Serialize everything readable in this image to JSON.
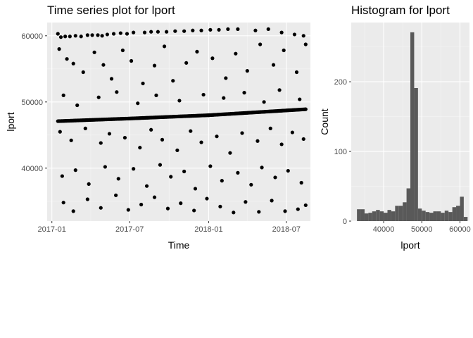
{
  "chart_data": [
    {
      "type": "scatter",
      "title": "Time series plot for lport",
      "xlabel": "Time",
      "ylabel": "lport",
      "xlim": [
        "2016-12-21",
        "2018-08-26"
      ],
      "ylim": [
        32000,
        62000
      ],
      "x_ticks": [
        "2017-01",
        "2017-07",
        "2018-01",
        "2018-07"
      ],
      "y_ticks": [
        40000,
        50000,
        60000
      ],
      "grid": true,
      "trend": {
        "x": [
          "2017-01-15",
          "2017-07-01",
          "2018-01-01",
          "2018-08-15"
        ],
        "y": [
          47100,
          47500,
          48000,
          48900
        ]
      },
      "points": [
        {
          "x": "2017-01-15",
          "y": 60300
        },
        {
          "x": "2017-01-22",
          "y": 59800
        },
        {
          "x": "2017-02-01",
          "y": 59900
        },
        {
          "x": "2017-02-12",
          "y": 59900
        },
        {
          "x": "2017-02-25",
          "y": 60000
        },
        {
          "x": "2017-03-10",
          "y": 59900
        },
        {
          "x": "2017-03-25",
          "y": 60100
        },
        {
          "x": "2017-04-05",
          "y": 60100
        },
        {
          "x": "2017-04-18",
          "y": 60100
        },
        {
          "x": "2017-04-28",
          "y": 60000
        },
        {
          "x": "2017-05-10",
          "y": 60200
        },
        {
          "x": "2017-05-25",
          "y": 60300
        },
        {
          "x": "2017-06-10",
          "y": 60400
        },
        {
          "x": "2017-06-25",
          "y": 60300
        },
        {
          "x": "2017-07-10",
          "y": 60500
        },
        {
          "x": "2017-08-05",
          "y": 60500
        },
        {
          "x": "2017-08-20",
          "y": 60600
        },
        {
          "x": "2017-09-05",
          "y": 60600
        },
        {
          "x": "2017-09-25",
          "y": 60600
        },
        {
          "x": "2017-10-15",
          "y": 60700
        },
        {
          "x": "2017-11-05",
          "y": 60700
        },
        {
          "x": "2017-11-25",
          "y": 60800
        },
        {
          "x": "2017-12-15",
          "y": 60800
        },
        {
          "x": "2018-01-05",
          "y": 60900
        },
        {
          "x": "2018-01-25",
          "y": 60900
        },
        {
          "x": "2018-02-15",
          "y": 61000
        },
        {
          "x": "2018-03-10",
          "y": 61000
        },
        {
          "x": "2018-04-20",
          "y": 60800
        },
        {
          "x": "2018-05-20",
          "y": 61000
        },
        {
          "x": "2018-06-20",
          "y": 60500
        },
        {
          "x": "2018-07-20",
          "y": 60200
        },
        {
          "x": "2018-08-10",
          "y": 60000
        },
        {
          "x": "2017-01-18",
          "y": 58000
        },
        {
          "x": "2017-02-05",
          "y": 56500
        },
        {
          "x": "2017-02-20",
          "y": 55800
        },
        {
          "x": "2017-03-15",
          "y": 54500
        },
        {
          "x": "2017-04-10",
          "y": 57500
        },
        {
          "x": "2017-05-01",
          "y": 55600
        },
        {
          "x": "2017-05-20",
          "y": 53500
        },
        {
          "x": "2017-06-15",
          "y": 57800
        },
        {
          "x": "2017-07-05",
          "y": 56200
        },
        {
          "x": "2017-08-01",
          "y": 52800
        },
        {
          "x": "2017-08-28",
          "y": 55500
        },
        {
          "x": "2017-09-20",
          "y": 58400
        },
        {
          "x": "2017-10-10",
          "y": 53200
        },
        {
          "x": "2017-11-10",
          "y": 55900
        },
        {
          "x": "2017-12-05",
          "y": 57600
        },
        {
          "x": "2018-01-10",
          "y": 56600
        },
        {
          "x": "2018-02-10",
          "y": 53600
        },
        {
          "x": "2018-03-05",
          "y": 57300
        },
        {
          "x": "2018-04-01",
          "y": 54700
        },
        {
          "x": "2018-05-01",
          "y": 58700
        },
        {
          "x": "2018-06-01",
          "y": 55600
        },
        {
          "x": "2018-06-25",
          "y": 57800
        },
        {
          "x": "2018-07-25",
          "y": 54500
        },
        {
          "x": "2018-08-15",
          "y": 58700
        },
        {
          "x": "2017-01-28",
          "y": 51000
        },
        {
          "x": "2017-03-01",
          "y": 49500
        },
        {
          "x": "2017-04-20",
          "y": 50700
        },
        {
          "x": "2017-06-01",
          "y": 51500
        },
        {
          "x": "2017-07-20",
          "y": 49800
        },
        {
          "x": "2017-09-01",
          "y": 51000
        },
        {
          "x": "2017-10-25",
          "y": 50200
        },
        {
          "x": "2017-12-20",
          "y": 51100
        },
        {
          "x": "2018-02-05",
          "y": 50600
        },
        {
          "x": "2018-03-25",
          "y": 51400
        },
        {
          "x": "2018-05-10",
          "y": 50000
        },
        {
          "x": "2018-06-15",
          "y": 51800
        },
        {
          "x": "2018-08-01",
          "y": 50400
        },
        {
          "x": "2017-01-20",
          "y": 45500
        },
        {
          "x": "2017-02-15",
          "y": 44200
        },
        {
          "x": "2017-03-20",
          "y": 46000
        },
        {
          "x": "2017-04-25",
          "y": 43800
        },
        {
          "x": "2017-05-15",
          "y": 45200
        },
        {
          "x": "2017-06-20",
          "y": 44600
        },
        {
          "x": "2017-07-25",
          "y": 43100
        },
        {
          "x": "2017-08-20",
          "y": 45800
        },
        {
          "x": "2017-09-15",
          "y": 44300
        },
        {
          "x": "2017-10-20",
          "y": 42700
        },
        {
          "x": "2017-11-20",
          "y": 45600
        },
        {
          "x": "2017-12-15",
          "y": 43900
        },
        {
          "x": "2018-01-20",
          "y": 44800
        },
        {
          "x": "2018-02-20",
          "y": 42300
        },
        {
          "x": "2018-03-20",
          "y": 45300
        },
        {
          "x": "2018-04-25",
          "y": 44100
        },
        {
          "x": "2018-05-25",
          "y": 46000
        },
        {
          "x": "2018-06-20",
          "y": 43600
        },
        {
          "x": "2018-07-15",
          "y": 45400
        },
        {
          "x": "2018-08-10",
          "y": 44400
        },
        {
          "x": "2017-01-25",
          "y": 38800
        },
        {
          "x": "2017-02-25",
          "y": 39700
        },
        {
          "x": "2017-03-28",
          "y": 37600
        },
        {
          "x": "2017-05-05",
          "y": 40200
        },
        {
          "x": "2017-06-05",
          "y": 38400
        },
        {
          "x": "2017-07-10",
          "y": 39900
        },
        {
          "x": "2017-08-10",
          "y": 37300
        },
        {
          "x": "2017-09-10",
          "y": 40500
        },
        {
          "x": "2017-10-05",
          "y": 38700
        },
        {
          "x": "2017-11-05",
          "y": 39500
        },
        {
          "x": "2017-12-01",
          "y": 36900
        },
        {
          "x": "2018-01-05",
          "y": 40300
        },
        {
          "x": "2018-02-01",
          "y": 38100
        },
        {
          "x": "2018-03-10",
          "y": 39300
        },
        {
          "x": "2018-04-10",
          "y": 37500
        },
        {
          "x": "2018-05-05",
          "y": 40100
        },
        {
          "x": "2018-06-05",
          "y": 38600
        },
        {
          "x": "2018-07-05",
          "y": 39600
        },
        {
          "x": "2018-08-05",
          "y": 37800
        },
        {
          "x": "2017-01-28",
          "y": 34800
        },
        {
          "x": "2017-02-20",
          "y": 33500
        },
        {
          "x": "2017-03-25",
          "y": 35300
        },
        {
          "x": "2017-04-25",
          "y": 34000
        },
        {
          "x": "2017-05-30",
          "y": 35900
        },
        {
          "x": "2017-06-28",
          "y": 33700
        },
        {
          "x": "2017-07-28",
          "y": 34500
        },
        {
          "x": "2017-08-28",
          "y": 35600
        },
        {
          "x": "2017-09-28",
          "y": 33900
        },
        {
          "x": "2017-10-28",
          "y": 34700
        },
        {
          "x": "2017-11-28",
          "y": 33600
        },
        {
          "x": "2017-12-28",
          "y": 35400
        },
        {
          "x": "2018-01-28",
          "y": 34200
        },
        {
          "x": "2018-02-28",
          "y": 33300
        },
        {
          "x": "2018-03-28",
          "y": 34900
        },
        {
          "x": "2018-04-28",
          "y": 33400
        },
        {
          "x": "2018-05-28",
          "y": 35100
        },
        {
          "x": "2018-06-28",
          "y": 33500
        },
        {
          "x": "2018-07-28",
          "y": 33800
        },
        {
          "x": "2018-08-15",
          "y": 34400
        }
      ]
    },
    {
      "type": "bar",
      "title": "Histogram for lport",
      "xlabel": "lport",
      "ylabel": "Count",
      "xlim": [
        31500,
        62500
      ],
      "ylim": [
        0,
        285
      ],
      "x_ticks": [
        40000,
        50000,
        60000
      ],
      "y_ticks": [
        0,
        100,
        200
      ],
      "grid": true,
      "bin_width": 1000,
      "bins_start": [
        33000,
        34000,
        35000,
        36000,
        37000,
        38000,
        39000,
        40000,
        41000,
        42000,
        43000,
        44000,
        45000,
        46000,
        47000,
        48000,
        49000,
        50000,
        51000,
        52000,
        53000,
        54000,
        55000,
        56000,
        57000,
        58000,
        59000,
        60000,
        61000
      ],
      "counts": [
        17,
        17,
        11,
        12,
        14,
        16,
        14,
        12,
        16,
        14,
        22,
        22,
        27,
        47,
        271,
        191,
        18,
        15,
        13,
        12,
        14,
        14,
        12,
        15,
        13,
        20,
        22,
        35,
        6
      ]
    }
  ]
}
